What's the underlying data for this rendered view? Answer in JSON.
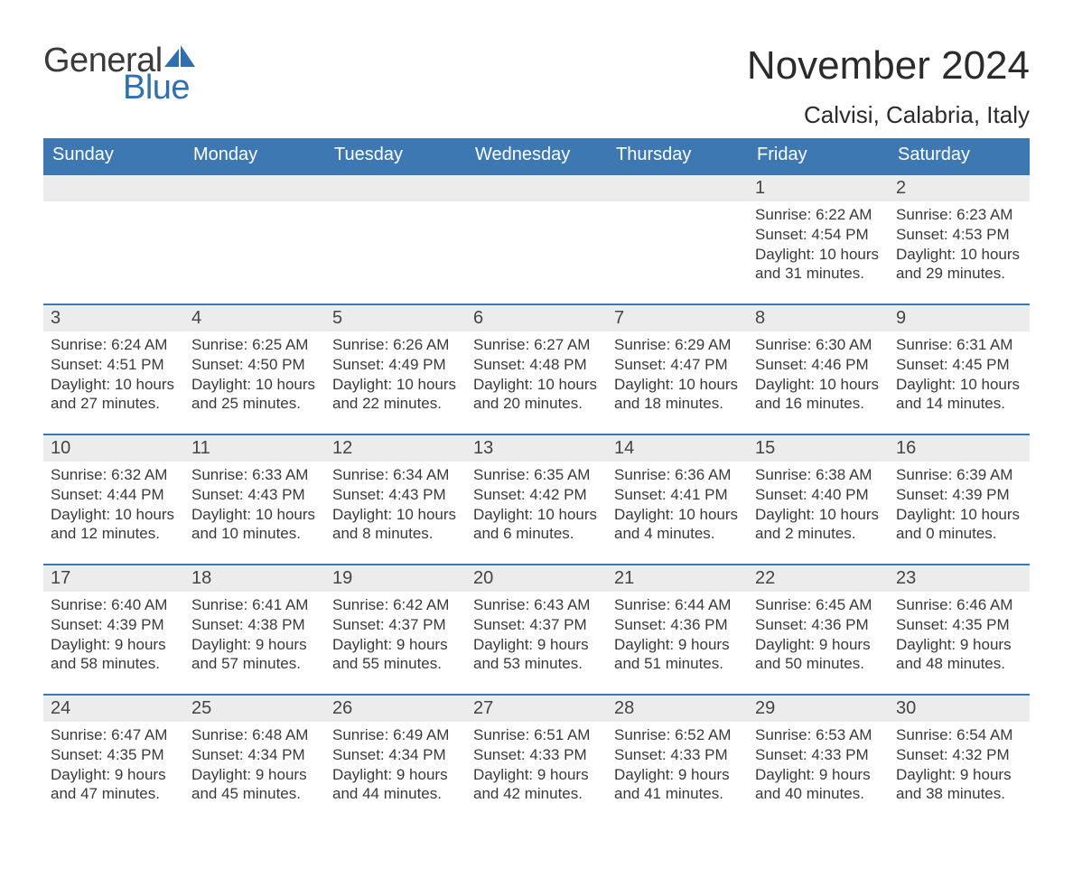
{
  "brand": {
    "word1": "General",
    "word2": "Blue"
  },
  "title": "November 2024",
  "location": "Calvisi, Calabria, Italy",
  "colors": {
    "header_bg": "#3e78b2",
    "header_text": "#ffffff",
    "row_divider": "#3e78b2",
    "daynum_bg": "#ececec",
    "body_text": "#3a3a3a",
    "brand_blue": "#2f6fb0",
    "page_bg": "#ffffff"
  },
  "typography": {
    "title_fontsize": 44,
    "location_fontsize": 26,
    "weekday_fontsize": 20,
    "daynum_fontsize": 20,
    "body_fontsize": 17
  },
  "weekdays": [
    "Sunday",
    "Monday",
    "Tuesday",
    "Wednesday",
    "Thursday",
    "Friday",
    "Saturday"
  ],
  "weeks": [
    [
      null,
      null,
      null,
      null,
      null,
      {
        "n": "1",
        "sunrise": "6:22 AM",
        "sunset": "4:54 PM",
        "dl_h": "10",
        "dl_m": "31"
      },
      {
        "n": "2",
        "sunrise": "6:23 AM",
        "sunset": "4:53 PM",
        "dl_h": "10",
        "dl_m": "29"
      }
    ],
    [
      {
        "n": "3",
        "sunrise": "6:24 AM",
        "sunset": "4:51 PM",
        "dl_h": "10",
        "dl_m": "27"
      },
      {
        "n": "4",
        "sunrise": "6:25 AM",
        "sunset": "4:50 PM",
        "dl_h": "10",
        "dl_m": "25"
      },
      {
        "n": "5",
        "sunrise": "6:26 AM",
        "sunset": "4:49 PM",
        "dl_h": "10",
        "dl_m": "22"
      },
      {
        "n": "6",
        "sunrise": "6:27 AM",
        "sunset": "4:48 PM",
        "dl_h": "10",
        "dl_m": "20"
      },
      {
        "n": "7",
        "sunrise": "6:29 AM",
        "sunset": "4:47 PM",
        "dl_h": "10",
        "dl_m": "18"
      },
      {
        "n": "8",
        "sunrise": "6:30 AM",
        "sunset": "4:46 PM",
        "dl_h": "10",
        "dl_m": "16"
      },
      {
        "n": "9",
        "sunrise": "6:31 AM",
        "sunset": "4:45 PM",
        "dl_h": "10",
        "dl_m": "14"
      }
    ],
    [
      {
        "n": "10",
        "sunrise": "6:32 AM",
        "sunset": "4:44 PM",
        "dl_h": "10",
        "dl_m": "12"
      },
      {
        "n": "11",
        "sunrise": "6:33 AM",
        "sunset": "4:43 PM",
        "dl_h": "10",
        "dl_m": "10"
      },
      {
        "n": "12",
        "sunrise": "6:34 AM",
        "sunset": "4:43 PM",
        "dl_h": "10",
        "dl_m": "8"
      },
      {
        "n": "13",
        "sunrise": "6:35 AM",
        "sunset": "4:42 PM",
        "dl_h": "10",
        "dl_m": "6"
      },
      {
        "n": "14",
        "sunrise": "6:36 AM",
        "sunset": "4:41 PM",
        "dl_h": "10",
        "dl_m": "4"
      },
      {
        "n": "15",
        "sunrise": "6:38 AM",
        "sunset": "4:40 PM",
        "dl_h": "10",
        "dl_m": "2"
      },
      {
        "n": "16",
        "sunrise": "6:39 AM",
        "sunset": "4:39 PM",
        "dl_h": "10",
        "dl_m": "0"
      }
    ],
    [
      {
        "n": "17",
        "sunrise": "6:40 AM",
        "sunset": "4:39 PM",
        "dl_h": "9",
        "dl_m": "58"
      },
      {
        "n": "18",
        "sunrise": "6:41 AM",
        "sunset": "4:38 PM",
        "dl_h": "9",
        "dl_m": "57"
      },
      {
        "n": "19",
        "sunrise": "6:42 AM",
        "sunset": "4:37 PM",
        "dl_h": "9",
        "dl_m": "55"
      },
      {
        "n": "20",
        "sunrise": "6:43 AM",
        "sunset": "4:37 PM",
        "dl_h": "9",
        "dl_m": "53"
      },
      {
        "n": "21",
        "sunrise": "6:44 AM",
        "sunset": "4:36 PM",
        "dl_h": "9",
        "dl_m": "51"
      },
      {
        "n": "22",
        "sunrise": "6:45 AM",
        "sunset": "4:36 PM",
        "dl_h": "9",
        "dl_m": "50"
      },
      {
        "n": "23",
        "sunrise": "6:46 AM",
        "sunset": "4:35 PM",
        "dl_h": "9",
        "dl_m": "48"
      }
    ],
    [
      {
        "n": "24",
        "sunrise": "6:47 AM",
        "sunset": "4:35 PM",
        "dl_h": "9",
        "dl_m": "47"
      },
      {
        "n": "25",
        "sunrise": "6:48 AM",
        "sunset": "4:34 PM",
        "dl_h": "9",
        "dl_m": "45"
      },
      {
        "n": "26",
        "sunrise": "6:49 AM",
        "sunset": "4:34 PM",
        "dl_h": "9",
        "dl_m": "44"
      },
      {
        "n": "27",
        "sunrise": "6:51 AM",
        "sunset": "4:33 PM",
        "dl_h": "9",
        "dl_m": "42"
      },
      {
        "n": "28",
        "sunrise": "6:52 AM",
        "sunset": "4:33 PM",
        "dl_h": "9",
        "dl_m": "41"
      },
      {
        "n": "29",
        "sunrise": "6:53 AM",
        "sunset": "4:33 PM",
        "dl_h": "9",
        "dl_m": "40"
      },
      {
        "n": "30",
        "sunrise": "6:54 AM",
        "sunset": "4:32 PM",
        "dl_h": "9",
        "dl_m": "38"
      }
    ]
  ],
  "labels": {
    "sunrise": "Sunrise: ",
    "sunset": "Sunset: ",
    "daylight_a": "Daylight: ",
    "daylight_b": " hours and ",
    "daylight_c": " minutes."
  }
}
